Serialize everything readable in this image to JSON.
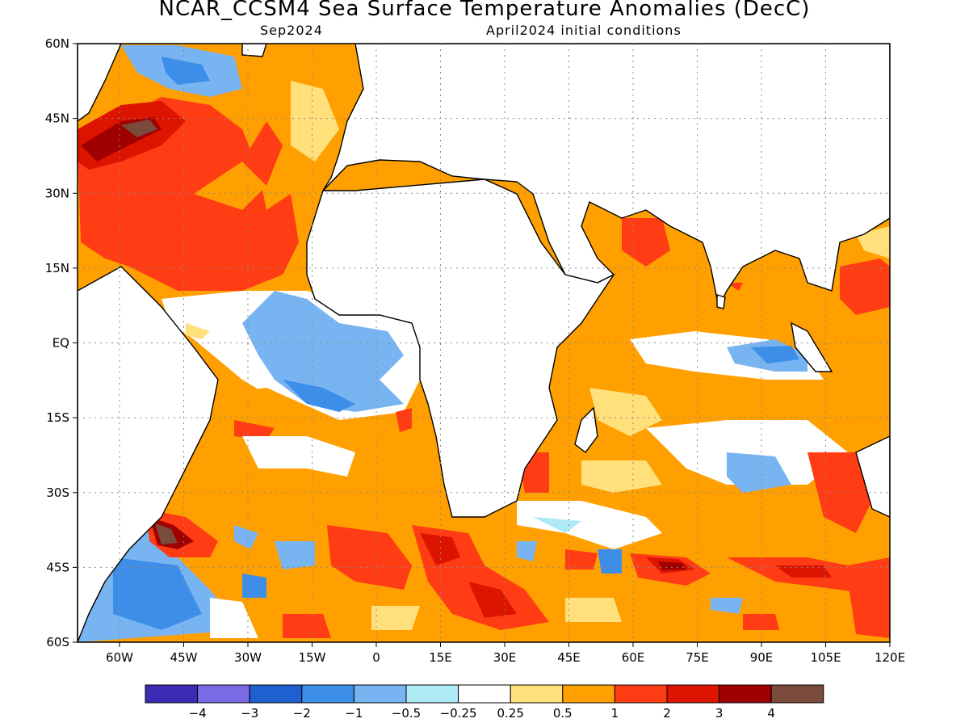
{
  "title": "NCAR_CCSM4 Sea Surface Temperature Anomalies (DecC)",
  "forecast_month": "Sep2024",
  "init_conditions": "April2024 initial conditions",
  "lat_ticks": [
    "60N",
    "45N",
    "30N",
    "15N",
    "EQ",
    "15S",
    "30S",
    "45S",
    "60S"
  ],
  "lon_ticks": [
    "60W",
    "45W",
    "30W",
    "15W",
    "0",
    "15E",
    "30E",
    "45E",
    "60E",
    "75E",
    "90E",
    "105E",
    "120E"
  ],
  "colorbar": {
    "labels": [
      "−4",
      "−3",
      "−2",
      "−1",
      "−0.5",
      "−0.25",
      "0.25",
      "0.5",
      "1",
      "2",
      "3",
      "4"
    ],
    "colors": [
      "#3c2ab4",
      "#7a6ae6",
      "#1f5fcf",
      "#3c8ee8",
      "#78b4f2",
      "#aeeaf6",
      "#ffffff",
      "#ffe07a",
      "#ffa000",
      "#ff3c14",
      "#dc1400",
      "#a00000",
      "#7a4a3c"
    ]
  }
}
